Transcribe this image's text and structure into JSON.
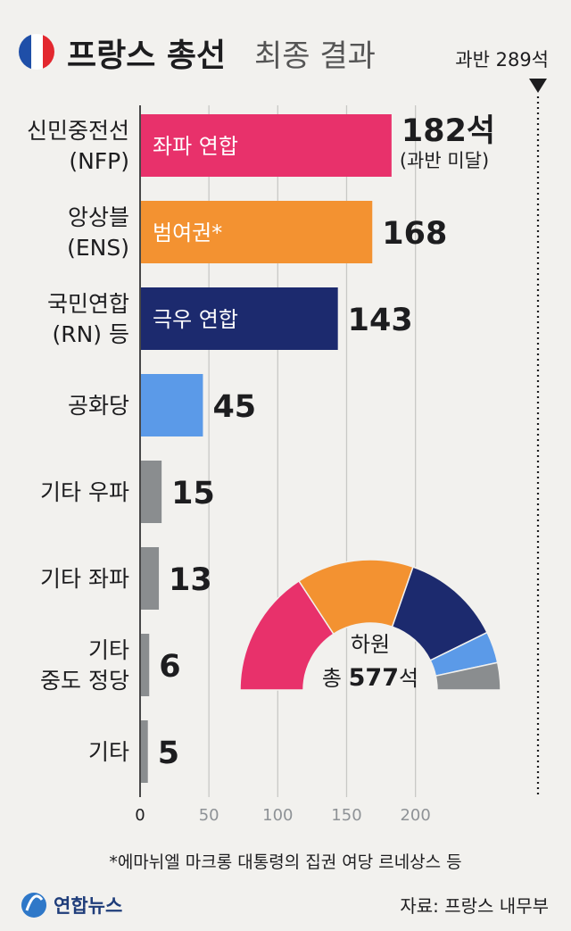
{
  "header": {
    "title_bold": "프랑스 총선",
    "title_light": "최종 결과",
    "majority_label": "과반 289석",
    "flag_colors": [
      "#1f4fa8",
      "#ffffff",
      "#e3282f"
    ]
  },
  "chart_data": {
    "type": "bar",
    "orientation": "horizontal",
    "categories": [
      [
        "신민중전선",
        "(NFP)"
      ],
      [
        "앙상블",
        "(ENS)"
      ],
      [
        "국민연합",
        "(RN) 등"
      ],
      [
        "공화당"
      ],
      [
        "기타 우파"
      ],
      [
        "기타 좌파"
      ],
      [
        "기타",
        "중도 정당"
      ],
      [
        "기타"
      ]
    ],
    "values": [
      182,
      168,
      143,
      45,
      15,
      13,
      6,
      5
    ],
    "value_labels": [
      "182석",
      "168",
      "143",
      "45",
      "15",
      "13",
      "6",
      "5"
    ],
    "bar_labels": [
      "좌파 연합",
      "범여권*",
      "극우 연합",
      "",
      "",
      "",
      "",
      ""
    ],
    "notes": [
      "(과반 미달)",
      "",
      "",
      "",
      "",
      "",
      "",
      ""
    ],
    "colors": [
      "#e8316b",
      "#f39231",
      "#1c2a6e",
      "#5b9ae8",
      "#8a8d8f",
      "#8a8d8f",
      "#8a8d8f",
      "#8a8d8f"
    ],
    "xticks": [
      0,
      50,
      100,
      150,
      200
    ],
    "xlim": [
      0,
      289
    ],
    "majority_line": 289,
    "grid": true
  },
  "donut": {
    "center_label": "하원",
    "total_prefix": "총 ",
    "total_value": "577",
    "total_suffix": "석",
    "total": 577
  },
  "footer": {
    "footnote": "*에마뉘엘 마크롱 대통령의 집권 여당 르네상스 등",
    "logo_text": "연합뉴스",
    "source": "자료: 프랑스 내무부"
  }
}
